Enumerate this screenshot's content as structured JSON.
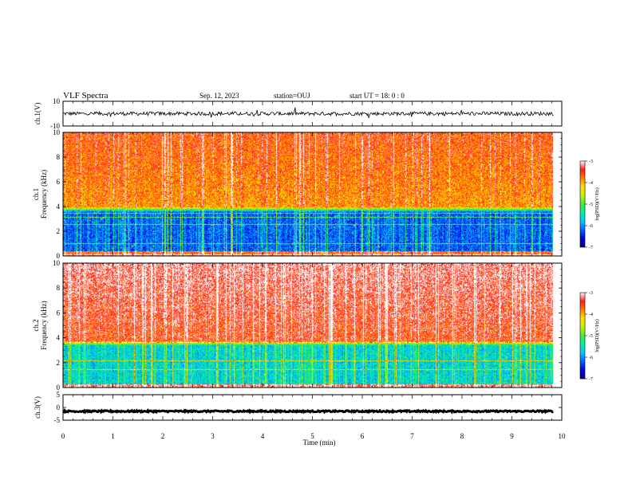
{
  "header": {
    "title": "VLF Spectra",
    "date": "Sep. 12, 2023",
    "station": "station=OUJ",
    "start_ut": "start  UT =   18: 0  : 0"
  },
  "colormap": [
    "#00007a",
    "#0000e6",
    "#0060ff",
    "#00c8ff",
    "#00f0a0",
    "#3cf03c",
    "#c8f000",
    "#ffe000",
    "#ff8000",
    "#ff1a1a",
    "#ffffff"
  ],
  "chart_data": [
    {
      "type": "line",
      "panel": "ch1-waveform",
      "ylabel": "ch.1(V)",
      "yticks": [
        "10",
        "-10"
      ],
      "ylim": [
        -10,
        10
      ],
      "xlim": [
        0,
        10
      ],
      "baseline": 0,
      "noise_amplitude": 1.5,
      "color": "#000000"
    },
    {
      "type": "heatmap",
      "panel": "ch1-spectrogram",
      "ylabel_line1": "ch.1",
      "ylabel_line2": "Frequency (kHz)",
      "yticks": [
        "0",
        "2",
        "4",
        "6",
        "8",
        "10"
      ],
      "ylim": [
        0,
        10
      ],
      "xlim": [
        0,
        9.83
      ],
      "colorbar_label": "log(PSD)(V²/Hz)",
      "colorbar_ticks": [
        "-3",
        "-4",
        "-5",
        "-6",
        "-7"
      ],
      "colorbar_range": [
        -7,
        -3
      ],
      "low_band_kHz": [
        0.4,
        3.6
      ],
      "low_band_level": -6.2,
      "high_band_level": -3.9,
      "transition_kHz": 4.0
    },
    {
      "type": "heatmap",
      "panel": "ch2-spectrogram",
      "ylabel_line1": "ch.2",
      "ylabel_line2": "Frequency (kHz)",
      "yticks": [
        "0",
        "2",
        "4",
        "6",
        "8",
        "10"
      ],
      "ylim": [
        0,
        10
      ],
      "xlim": [
        0,
        9.83
      ],
      "colorbar_label": "log(PSD)(V²/Hz)",
      "colorbar_ticks": [
        "-3",
        "-4",
        "-5",
        "-6",
        "-7"
      ],
      "colorbar_range": [
        -7,
        -3
      ],
      "low_band_kHz": [
        0.3,
        3.4
      ],
      "low_band_level": -5.6,
      "high_band_level": -3.5,
      "transition_kHz": 3.8
    },
    {
      "type": "line",
      "panel": "ch3-waveform",
      "ylabel": "ch.3(V)",
      "yticks": [
        "5",
        "0",
        "-5"
      ],
      "ylim": [
        -5,
        5
      ],
      "xlim": [
        0,
        10
      ],
      "baseline": -1.5,
      "noise_amplitude": 0.3,
      "color": "#000000"
    }
  ],
  "x_axis": {
    "label": "Time  (min)",
    "ticks": [
      "0",
      "1",
      "2",
      "3",
      "4",
      "5",
      "6",
      "7",
      "8",
      "9",
      "10"
    ],
    "range": [
      0,
      10
    ]
  }
}
